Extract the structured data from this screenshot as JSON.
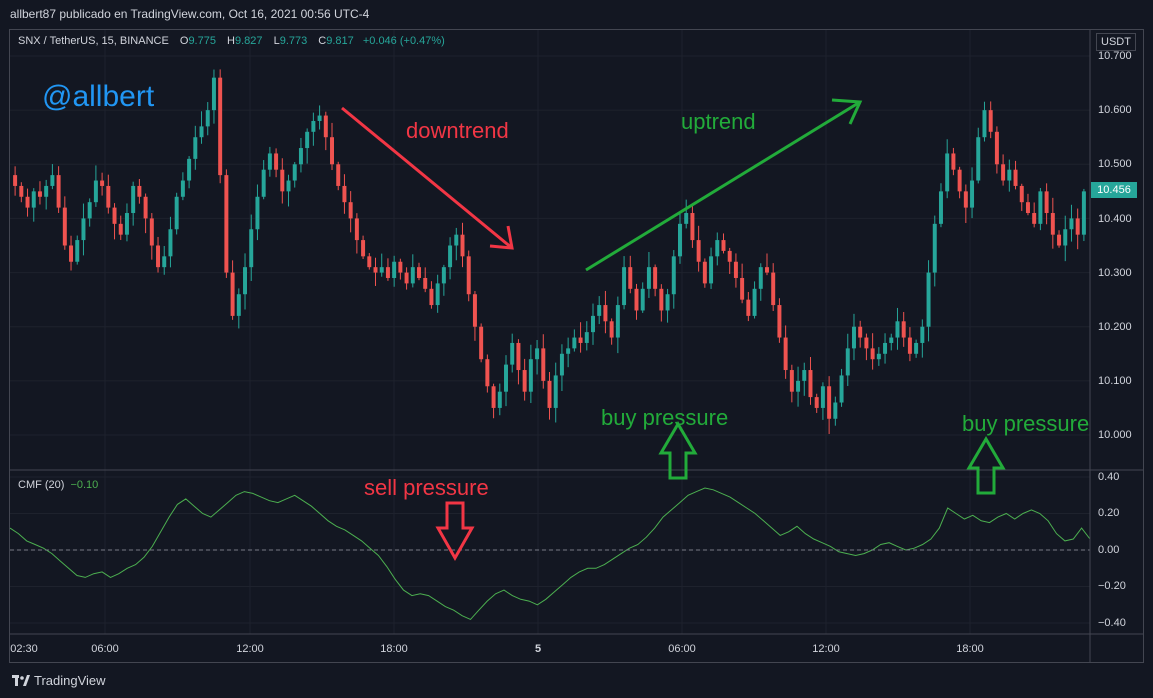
{
  "header": {
    "publisher": "allbert87 publicado en TradingView.com, Oct 16, 2021 00:56 UTC-4"
  },
  "legend": {
    "symbol": "SNX / TetherUS, 15, BINANCE",
    "open_label": "O",
    "open": "9.775",
    "high_label": "H",
    "high": "9.827",
    "low_label": "L",
    "low": "9.773",
    "close_label": "C",
    "close": "9.817",
    "change": "+0.046 (+0.47%)"
  },
  "price_scale": {
    "currency": "USDT",
    "ticks": [
      "10.700",
      "10.600",
      "10.500",
      "10.400",
      "10.300",
      "10.200",
      "10.100",
      "10.000"
    ],
    "current_price": "10.456"
  },
  "cmf": {
    "label": "CMF (20)",
    "value": "−0.10",
    "ticks": [
      "0.40",
      "0.20",
      "0.00",
      "−0.20",
      "−0.40"
    ]
  },
  "x_axis": {
    "ticks": [
      {
        "label": "02:30",
        "bold": false
      },
      {
        "label": "06:00",
        "bold": false
      },
      {
        "label": "12:00",
        "bold": false
      },
      {
        "label": "18:00",
        "bold": false
      },
      {
        "label": "5",
        "bold": true
      },
      {
        "label": "06:00",
        "bold": false
      },
      {
        "label": "12:00",
        "bold": false
      },
      {
        "label": "18:00",
        "bold": false
      }
    ]
  },
  "annotations": {
    "watermark": "@allbert",
    "downtrend": "downtrend",
    "uptrend": "uptrend",
    "sell_pressure": "sell pressure",
    "buy_pressure_1": "buy pressure",
    "buy_pressure_2": "buy pressure"
  },
  "footer": {
    "brand": "TradingView"
  },
  "colors": {
    "bull": "#26a69a",
    "bear": "#ef5350",
    "cmf_line": "#4caf50",
    "annot_red": "#f23645",
    "annot_green": "#22ab3a",
    "watermark": "#2196f3"
  },
  "chart_data": {
    "type": "candlestick",
    "price_ylim": [
      10.0,
      10.7
    ],
    "close_path": [
      10.46,
      10.44,
      10.42,
      10.45,
      10.44,
      10.46,
      10.48,
      10.42,
      10.35,
      10.32,
      10.36,
      10.4,
      10.43,
      10.47,
      10.46,
      10.42,
      10.39,
      10.37,
      10.41,
      10.46,
      10.44,
      10.4,
      10.35,
      10.31,
      10.33,
      10.38,
      10.44,
      10.47,
      10.51,
      10.55,
      10.57,
      10.6,
      10.66,
      10.48,
      10.3,
      10.22,
      10.26,
      10.31,
      10.38,
      10.44,
      10.49,
      10.52,
      10.49,
      10.45,
      10.47,
      10.5,
      10.53,
      10.56,
      10.58,
      10.59,
      10.55,
      10.5,
      10.46,
      10.43,
      10.4,
      10.36,
      10.33,
      10.31,
      10.3,
      10.31,
      10.29,
      10.32,
      10.3,
      10.28,
      10.31,
      10.29,
      10.27,
      10.24,
      10.28,
      10.31,
      10.35,
      10.37,
      10.33,
      10.26,
      10.2,
      10.14,
      10.09,
      10.05,
      10.08,
      10.13,
      10.17,
      10.12,
      10.08,
      10.14,
      10.16,
      10.1,
      10.05,
      10.11,
      10.15,
      10.16,
      10.18,
      10.17,
      10.19,
      10.22,
      10.24,
      10.21,
      10.18,
      10.24,
      10.31,
      10.27,
      10.23,
      10.27,
      10.31,
      10.27,
      10.23,
      10.26,
      10.33,
      10.39,
      10.41,
      10.36,
      10.32,
      10.28,
      10.33,
      10.36,
      10.34,
      10.32,
      10.29,
      10.25,
      10.22,
      10.27,
      10.31,
      10.3,
      10.24,
      10.18,
      10.12,
      10.08,
      10.1,
      10.12,
      10.07,
      10.05,
      10.09,
      10.03,
      10.06,
      10.11,
      10.16,
      10.2,
      10.18,
      10.16,
      10.14,
      10.15,
      10.17,
      10.18,
      10.21,
      10.18,
      10.15,
      10.17,
      10.2,
      10.3,
      10.39,
      10.45,
      10.52,
      10.49,
      10.45,
      10.42,
      10.47,
      10.55,
      10.6,
      10.56,
      10.5,
      10.47,
      10.49,
      10.46,
      10.43,
      10.41,
      10.39,
      10.45,
      10.41,
      10.37,
      10.35,
      10.38,
      10.4,
      10.37,
      10.45
    ],
    "cmf_ylim": [
      -0.4,
      0.4
    ],
    "cmf": [
      0.12,
      0.09,
      0.05,
      0.03,
      0.01,
      -0.02,
      -0.06,
      -0.1,
      -0.14,
      -0.15,
      -0.13,
      -0.12,
      -0.15,
      -0.13,
      -0.1,
      -0.08,
      -0.04,
      0.02,
      0.1,
      0.18,
      0.25,
      0.28,
      0.24,
      0.2,
      0.18,
      0.22,
      0.26,
      0.3,
      0.32,
      0.31,
      0.29,
      0.27,
      0.26,
      0.28,
      0.3,
      0.27,
      0.24,
      0.2,
      0.16,
      0.13,
      0.11,
      0.08,
      0.05,
      0.01,
      -0.03,
      -0.09,
      -0.16,
      -0.22,
      -0.25,
      -0.24,
      -0.25,
      -0.28,
      -0.31,
      -0.33,
      -0.36,
      -0.38,
      -0.33,
      -0.28,
      -0.24,
      -0.22,
      -0.25,
      -0.27,
      -0.28,
      -0.3,
      -0.27,
      -0.23,
      -0.19,
      -0.15,
      -0.12,
      -0.1,
      -0.1,
      -0.08,
      -0.05,
      -0.02,
      0.01,
      0.03,
      0.07,
      0.12,
      0.18,
      0.22,
      0.26,
      0.3,
      0.32,
      0.34,
      0.33,
      0.31,
      0.29,
      0.26,
      0.23,
      0.2,
      0.16,
      0.12,
      0.08,
      0.1,
      0.13,
      0.09,
      0.06,
      0.04,
      0.02,
      -0.01,
      -0.02,
      -0.03,
      -0.02,
      0.0,
      0.03,
      0.04,
      0.02,
      0.0,
      0.01,
      0.03,
      0.06,
      0.12,
      0.23,
      0.2,
      0.17,
      0.19,
      0.16,
      0.15,
      0.18,
      0.2,
      0.17,
      0.2,
      0.22,
      0.2,
      0.16,
      0.09,
      0.05,
      0.06,
      0.12,
      0.06
    ]
  }
}
